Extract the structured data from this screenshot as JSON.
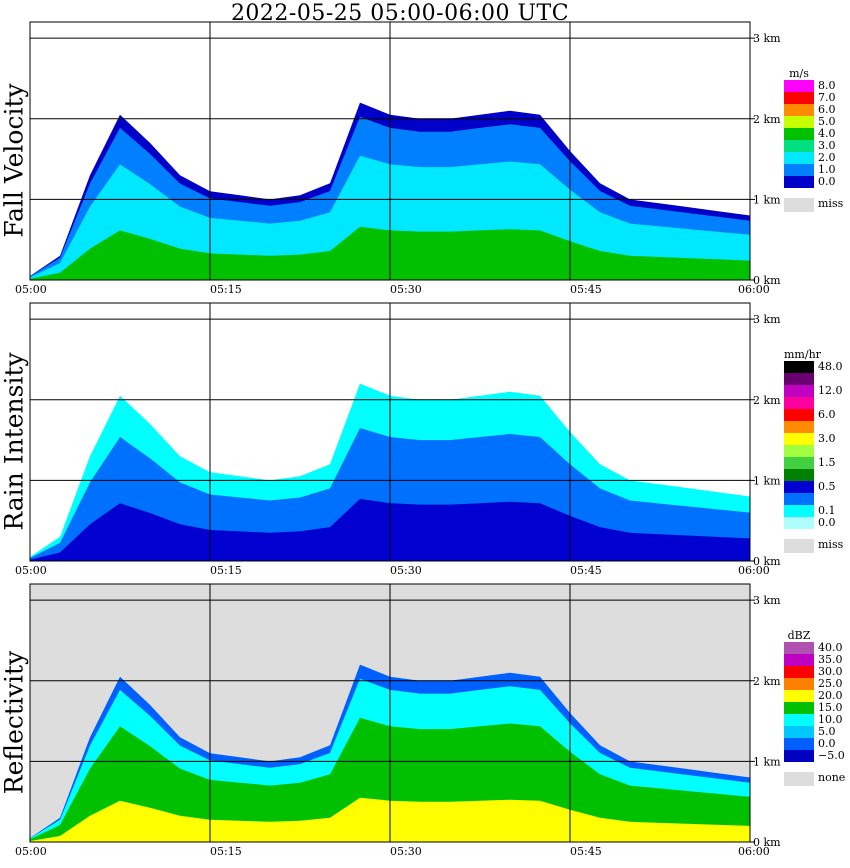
{
  "title": "2022-05-25   05:00-06:00 UTC",
  "x_ticks": [
    "05:00",
    "05:15",
    "05:30",
    "05:45",
    "06:00"
  ],
  "y_ticks": [
    "0 km",
    "1 km",
    "2 km",
    "3 km"
  ],
  "panels": [
    {
      "label": "Fall Velocity",
      "unit": "m/s",
      "missing_label": "miss",
      "legend": [
        {
          "label": "8.0",
          "color": "#ff00ff"
        },
        {
          "label": "7.0",
          "color": "#ff0000"
        },
        {
          "label": "6.0",
          "color": "#ff8c00"
        },
        {
          "label": "5.0",
          "color": "#c8ff00"
        },
        {
          "label": "4.0",
          "color": "#00c000"
        },
        {
          "label": "3.0",
          "color": "#00e080"
        },
        {
          "label": "2.0",
          "color": "#00e8ff"
        },
        {
          "label": "1.0",
          "color": "#0080ff"
        },
        {
          "label": "0.0",
          "color": "#0000c8"
        }
      ]
    },
    {
      "label": "Rain Intensity",
      "unit": "mm/hr",
      "missing_label": "miss",
      "legend": [
        {
          "label": "48.0",
          "color": "#000000"
        },
        {
          "label": "",
          "color": "#6a0070"
        },
        {
          "label": "12.0",
          "color": "#c000c0"
        },
        {
          "label": "",
          "color": "#ff00a0"
        },
        {
          "label": "6.0",
          "color": "#ff0000"
        },
        {
          "label": "",
          "color": "#ff8c00"
        },
        {
          "label": "3.0",
          "color": "#ffff00"
        },
        {
          "label": "",
          "color": "#a0ff40"
        },
        {
          "label": "1.5",
          "color": "#40d040"
        },
        {
          "label": "",
          "color": "#008000"
        },
        {
          "label": "0.5",
          "color": "#0000d0"
        },
        {
          "label": "",
          "color": "#0070ff"
        },
        {
          "label": "0.1",
          "color": "#00ffff"
        },
        {
          "label": "0.0",
          "color": "#b0ffff"
        }
      ]
    },
    {
      "label": "Reflectivity",
      "unit": "dBZ",
      "missing_label": "none",
      "legend": [
        {
          "label": "40.0",
          "color": "#b050b0"
        },
        {
          "label": "35.0",
          "color": "#c000c0"
        },
        {
          "label": "30.0",
          "color": "#ff0000"
        },
        {
          "label": "25.0",
          "color": "#ff8000"
        },
        {
          "label": "20.0",
          "color": "#ffff00"
        },
        {
          "label": "15.0",
          "color": "#00c000"
        },
        {
          "label": "10.0",
          "color": "#00ffff"
        },
        {
          "label": "5.0",
          "color": "#00c8ff"
        },
        {
          "label": "0.0",
          "color": "#0060ff"
        },
        {
          "label": "−5.0",
          "color": "#0000c0"
        }
      ]
    }
  ],
  "chart_data": [
    {
      "type": "heatmap",
      "title": "Fall Velocity",
      "colorbar_unit": "m/s",
      "x_range": [
        "05:00",
        "06:00"
      ],
      "y_range_km": [
        0,
        3.2
      ],
      "grid": true,
      "echo_top_km": [
        0.05,
        0.3,
        1.3,
        2.05,
        1.7,
        1.3,
        1.1,
        1.05,
        1.0,
        1.05,
        1.2,
        2.2,
        2.05,
        2.0,
        2.0,
        2.05,
        2.1,
        2.05,
        1.6,
        1.2,
        1.0,
        0.95,
        0.9,
        0.85,
        0.8
      ],
      "layers": [
        {
          "class_index": 8,
          "top_factor": 1.0
        },
        {
          "class_index": 7,
          "top_factor": 0.92
        },
        {
          "class_index": 6,
          "top_factor": 0.7
        },
        {
          "class_index": 4,
          "top_factor": 0.3
        }
      ]
    },
    {
      "type": "heatmap",
      "title": "Rain Intensity",
      "colorbar_unit": "mm/hr",
      "x_range": [
        "05:00",
        "06:00"
      ],
      "y_range_km": [
        0,
        3.2
      ],
      "grid": true,
      "echo_top_km": [
        0.05,
        0.3,
        1.3,
        2.05,
        1.7,
        1.3,
        1.1,
        1.05,
        1.0,
        1.05,
        1.2,
        2.2,
        2.05,
        2.0,
        2.0,
        2.05,
        2.1,
        2.05,
        1.6,
        1.2,
        1.0,
        0.95,
        0.9,
        0.85,
        0.8
      ],
      "layers": [
        {
          "class_index": 12,
          "top_factor": 1.0
        },
        {
          "class_index": 11,
          "top_factor": 0.75
        },
        {
          "class_index": 10,
          "top_factor": 0.35
        }
      ]
    },
    {
      "type": "heatmap",
      "title": "Reflectivity",
      "colorbar_unit": "dBZ",
      "x_range": [
        "05:00",
        "06:00"
      ],
      "y_range_km": [
        0,
        3.2
      ],
      "grid": true,
      "background_class": "none",
      "echo_top_km": [
        0.05,
        0.3,
        1.3,
        2.05,
        1.7,
        1.3,
        1.1,
        1.05,
        1.0,
        1.05,
        1.2,
        2.2,
        2.05,
        2.0,
        2.0,
        2.05,
        2.1,
        2.05,
        1.6,
        1.2,
        1.0,
        0.95,
        0.9,
        0.85,
        0.8
      ],
      "layers": [
        {
          "class_index": 8,
          "top_factor": 1.0
        },
        {
          "class_index": 6,
          "top_factor": 0.92
        },
        {
          "class_index": 5,
          "top_factor": 0.7
        },
        {
          "class_index": 4,
          "top_factor": 0.25
        }
      ]
    }
  ]
}
